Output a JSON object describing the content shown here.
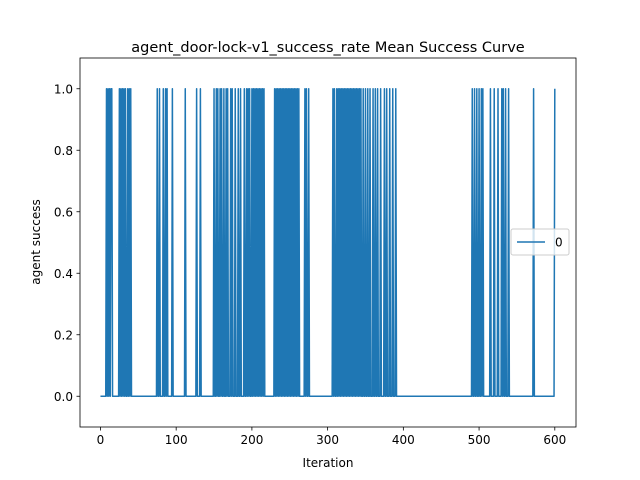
{
  "chart_data": {
    "type": "line",
    "title": "agent_door-lock-v1_success_rate Mean Success Curve",
    "xlabel": "Iteration",
    "ylabel": "agent success",
    "xlim": [
      -27,
      628
    ],
    "ylim": [
      -0.1,
      1.1
    ],
    "xticks": [
      0,
      100,
      200,
      300,
      400,
      500,
      600
    ],
    "yticks": [
      0.0,
      0.2,
      0.4,
      0.6,
      0.8,
      1.0
    ],
    "ytick_labels": [
      "0.0",
      "0.2",
      "0.4",
      "0.6",
      "0.8",
      "1.0"
    ],
    "grid": false,
    "legend_position": "center-right",
    "series": [
      {
        "name": "0",
        "color": "#1f77b4",
        "success_iterations": [
          8,
          10,
          12,
          14,
          15,
          25,
          27,
          29,
          31,
          33,
          36,
          38,
          40,
          75,
          78,
          83,
          86,
          88,
          95,
          112,
          127,
          132,
          150,
          153,
          155,
          158,
          160,
          163,
          166,
          168,
          172,
          174,
          178,
          182,
          185,
          190,
          193,
          195,
          197,
          200,
          202,
          204,
          206,
          208,
          210,
          212,
          214,
          216,
          230,
          232,
          234,
          236,
          238,
          240,
          242,
          244,
          246,
          248,
          250,
          252,
          254,
          256,
          258,
          260,
          262,
          270,
          272,
          275,
          307,
          309,
          312,
          314,
          316,
          318,
          320,
          322,
          324,
          326,
          328,
          330,
          332,
          334,
          336,
          338,
          340,
          342,
          344,
          347,
          350,
          353,
          356,
          360,
          363,
          366,
          370,
          375,
          378,
          382,
          386,
          390,
          491,
          494,
          497,
          500,
          503,
          505,
          515,
          520,
          525,
          530,
          532,
          535,
          539,
          572,
          600
        ],
        "values_note_free": true
      }
    ]
  }
}
